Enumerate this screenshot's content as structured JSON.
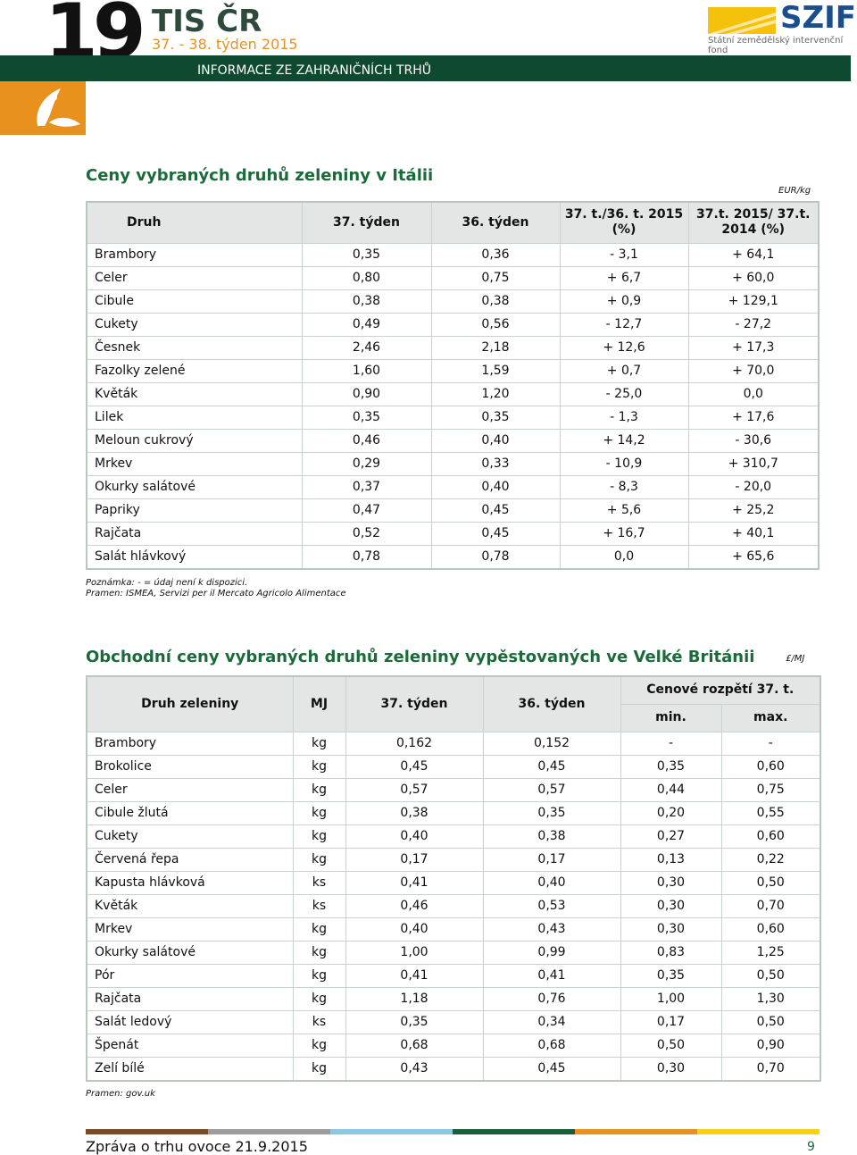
{
  "header": {
    "number": "19",
    "brand": "TIS ČR",
    "week": "37. - 38. týden 2015",
    "banner": "INFORMACE ZE ZAHRANIČNÍCH TRHŮ",
    "logo": "SZIF",
    "logo_sub": "Státní zemědělský intervenční fond"
  },
  "table1": {
    "title": "Ceny vybraných druhů zeleniny v Itálii",
    "unit": "EUR/kg",
    "columns": [
      "Druh",
      "37. týden",
      "36. týden",
      "37. t./36. t. 2015 (%)",
      "37.t. 2015/ 37.t. 2014 (%)"
    ],
    "rows": [
      [
        "Brambory",
        "0,35",
        "0,36",
        "- 3,1",
        "+ 64,1"
      ],
      [
        "Celer",
        "0,80",
        "0,75",
        "+ 6,7",
        "+ 60,0"
      ],
      [
        "Cibule",
        "0,38",
        "0,38",
        "+ 0,9",
        "+ 129,1"
      ],
      [
        "Cukety",
        "0,49",
        "0,56",
        "- 12,7",
        "- 27,2"
      ],
      [
        "Česnek",
        "2,46",
        "2,18",
        "+ 12,6",
        "+ 17,3"
      ],
      [
        "Fazolky zelené",
        "1,60",
        "1,59",
        "+ 0,7",
        "+ 70,0"
      ],
      [
        "Květák",
        "0,90",
        "1,20",
        "- 25,0",
        "0,0"
      ],
      [
        "Lilek",
        "0,35",
        "0,35",
        "- 1,3",
        "+ 17,6"
      ],
      [
        "Meloun cukrový",
        "0,46",
        "0,40",
        "+ 14,2",
        "- 30,6"
      ],
      [
        "Mrkev",
        "0,29",
        "0,33",
        "- 10,9",
        "+ 310,7"
      ],
      [
        "Okurky salátové",
        "0,37",
        "0,40",
        "- 8,3",
        "- 20,0"
      ],
      [
        "Papriky",
        "0,47",
        "0,45",
        "+ 5,6",
        "+ 25,2"
      ],
      [
        "Rajčata",
        "0,52",
        "0,45",
        "+ 16,7",
        "+ 40,1"
      ],
      [
        "Salát hlávkový",
        "0,78",
        "0,78",
        "0,0",
        "+ 65,6"
      ]
    ],
    "notes": [
      "Poznámka: - = údaj není k dispozici.",
      "Pramen: ISMEA, Servizi per il Mercato Agricolo Alimentace"
    ]
  },
  "table2": {
    "title": "Obchodní ceny vybraných druhů zeleniny vypěstovaných ve Velké Británii",
    "unit": "£/MJ",
    "columns": [
      "Druh zeleniny",
      "MJ",
      "37. týden",
      "36. týden"
    ],
    "group": "Cenové rozpětí 37. t.",
    "subcolumns": [
      "min.",
      "max."
    ],
    "rows": [
      [
        "Brambory",
        "kg",
        "0,162",
        "0,152",
        "-",
        "-"
      ],
      [
        "Brokolice",
        "kg",
        "0,45",
        "0,45",
        "0,35",
        "0,60"
      ],
      [
        "Celer",
        "kg",
        "0,57",
        "0,57",
        "0,44",
        "0,75"
      ],
      [
        "Cibule žlutá",
        "kg",
        "0,38",
        "0,35",
        "0,20",
        "0,55"
      ],
      [
        "Cukety",
        "kg",
        "0,40",
        "0,38",
        "0,27",
        "0,60"
      ],
      [
        "Červená řepa",
        "kg",
        "0,17",
        "0,17",
        "0,13",
        "0,22"
      ],
      [
        "Kapusta hlávková",
        "ks",
        "0,41",
        "0,40",
        "0,30",
        "0,50"
      ],
      [
        "Květák",
        "ks",
        "0,46",
        "0,53",
        "0,30",
        "0,70"
      ],
      [
        "Mrkev",
        "kg",
        "0,40",
        "0,43",
        "0,30",
        "0,60"
      ],
      [
        "Okurky salátové",
        "kg",
        "1,00",
        "0,99",
        "0,83",
        "1,25"
      ],
      [
        "Pór",
        "kg",
        "0,41",
        "0,41",
        "0,35",
        "0,50"
      ],
      [
        "Rajčata",
        "kg",
        "1,18",
        "0,76",
        "1,00",
        "1,30"
      ],
      [
        "Salát ledový",
        "ks",
        "0,35",
        "0,34",
        "0,17",
        "0,50"
      ],
      [
        "Špenát",
        "kg",
        "0,68",
        "0,68",
        "0,50",
        "0,90"
      ],
      [
        "Zelí bílé",
        "kg",
        "0,43",
        "0,45",
        "0,30",
        "0,70"
      ]
    ],
    "source": "Pramen: gov.uk"
  },
  "footer": {
    "text": "Zpráva o trhu ovoce 21.9.2015",
    "page": "9"
  }
}
